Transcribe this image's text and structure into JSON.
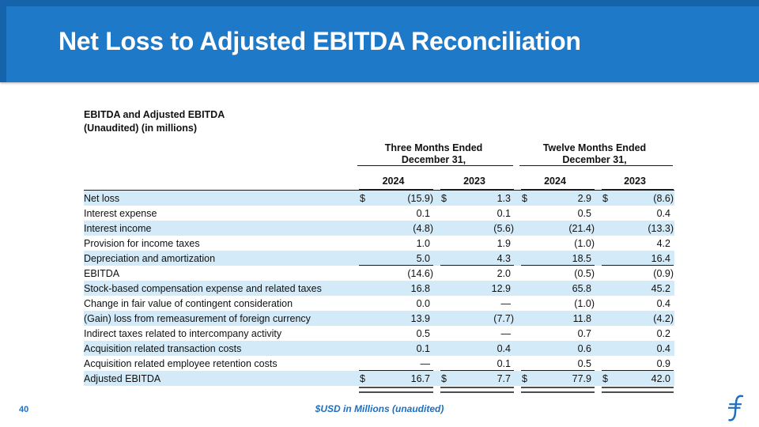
{
  "slide": {
    "title": "Net Loss to Adjusted EBITDA Reconciliation",
    "page_number": "40",
    "footnote": "$USD in Millions (unaudited)"
  },
  "colors": {
    "banner_blue": "#1e79c8",
    "banner_edge_blue": "#1563ab",
    "row_band_blue": "#d3eaf8",
    "accent_blue": "#1d6fc1"
  },
  "table": {
    "heading_line1": "EBITDA and Adjusted EBITDA",
    "heading_line2": "(Unaudited) (in millions)",
    "col_groups": [
      {
        "label_line1": "Three Months Ended",
        "label_line2": "December 31,"
      },
      {
        "label_line1": "Twelve Months Ended",
        "label_line2": "December 31,"
      }
    ],
    "years": [
      "2024",
      "2023",
      "2024",
      "2023"
    ],
    "rows": [
      {
        "label": "Net loss",
        "dollar": true,
        "values": [
          "(15.9)",
          "1.3",
          "2.9",
          "(8.6)"
        ],
        "band": "blue",
        "rule_below": null
      },
      {
        "label": "Interest expense",
        "dollar": false,
        "values": [
          "0.1",
          "0.1",
          "0.5",
          "0.4"
        ],
        "band": "white",
        "rule_below": null
      },
      {
        "label": "Interest income",
        "dollar": false,
        "values": [
          "(4.8)",
          "(5.6)",
          "(21.4)",
          "(13.3)"
        ],
        "band": "blue",
        "rule_below": null
      },
      {
        "label": "Provision for income taxes",
        "dollar": false,
        "values": [
          "1.0",
          "1.9",
          "(1.0)",
          "4.2"
        ],
        "band": "white",
        "rule_below": null
      },
      {
        "label": "Depreciation and amortization",
        "dollar": false,
        "values": [
          "5.0",
          "4.3",
          "18.5",
          "16.4"
        ],
        "band": "blue",
        "rule_below": "single"
      },
      {
        "label": "EBITDA",
        "dollar": false,
        "values": [
          "(14.6)",
          "2.0",
          "(0.5)",
          "(0.9)"
        ],
        "band": "white",
        "rule_below": null
      },
      {
        "label": "Stock-based compensation expense and related taxes",
        "dollar": false,
        "values": [
          "16.8",
          "12.9",
          "65.8",
          "45.2"
        ],
        "band": "blue",
        "rule_below": null
      },
      {
        "label": "Change in fair value of contingent consideration",
        "dollar": false,
        "values": [
          "0.0",
          "—",
          "(1.0)",
          "0.4"
        ],
        "band": "white",
        "rule_below": null
      },
      {
        "label": "(Gain) loss from remeasurement of foreign currency",
        "dollar": false,
        "values": [
          "13.9",
          "(7.7)",
          "11.8",
          "(4.2)"
        ],
        "band": "blue",
        "rule_below": null
      },
      {
        "label": "Indirect taxes related to intercompany activity",
        "dollar": false,
        "values": [
          "0.5",
          "—",
          "0.7",
          "0.2"
        ],
        "band": "white",
        "rule_below": null
      },
      {
        "label": "Acquisition related transaction costs",
        "dollar": false,
        "values": [
          "0.1",
          "0.4",
          "0.6",
          "0.4"
        ],
        "band": "blue",
        "rule_below": null
      },
      {
        "label": "Acquisition related employee retention costs",
        "dollar": false,
        "values": [
          "—",
          "0.1",
          "0.5",
          "0.9"
        ],
        "band": "white",
        "rule_below": "single"
      },
      {
        "label": "Adjusted EBITDA",
        "dollar": true,
        "values": [
          "16.7",
          "7.7",
          "77.9",
          "42.0"
        ],
        "band": "blue",
        "rule_below": "double"
      }
    ]
  }
}
